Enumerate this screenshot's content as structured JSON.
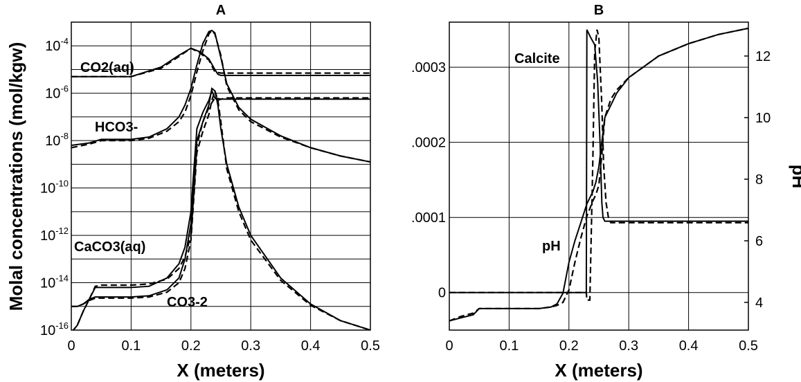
{
  "chart_data": [
    {
      "type": "line",
      "title": "A",
      "xlabel": "X (meters)",
      "ylabel": "Molal concentrations (mol/kgw)",
      "yscale": "log",
      "xlim": [
        0,
        0.5
      ],
      "ylim_log10": [
        -16,
        -3
      ],
      "x_ticks": [
        "0",
        "0.1",
        "0.2",
        "0.3",
        "0.4",
        "0.5"
      ],
      "y_ticks": [
        {
          "base": "10",
          "exp": "-16"
        },
        {
          "base": "10",
          "exp": "-14"
        },
        {
          "base": "10",
          "exp": "-12"
        },
        {
          "base": "10",
          "exp": "-10"
        },
        {
          "base": "10",
          "exp": "-8"
        },
        {
          "base": "10",
          "exp": "-6"
        },
        {
          "base": "10",
          "exp": "-4"
        }
      ],
      "grid": true,
      "annotations": [
        "CO2(aq)",
        "HCO3-",
        "CaCO3(aq)",
        "CO3-2"
      ],
      "series": [
        {
          "name": "CO2(aq)",
          "style": "solid",
          "x": [
            0,
            0.05,
            0.1,
            0.15,
            0.18,
            0.2,
            0.215,
            0.23,
            0.24,
            0.245,
            0.25,
            0.253,
            0.5
          ],
          "log10y": [
            -5.3,
            -5.3,
            -5.3,
            -4.9,
            -4.4,
            -4.1,
            -4.25,
            -4.55,
            -5.0,
            -5.2,
            -5.25,
            -5.25,
            -5.25
          ]
        },
        {
          "name": "CO2(aq)",
          "style": "dashed",
          "x": [
            0,
            0.05,
            0.1,
            0.15,
            0.18,
            0.2,
            0.215,
            0.23,
            0.24,
            0.25,
            0.255,
            0.5
          ],
          "log10y": [
            -5.3,
            -5.3,
            -5.3,
            -4.95,
            -4.45,
            -4.1,
            -4.3,
            -4.6,
            -5.1,
            -5.15,
            -5.15,
            -5.15
          ]
        },
        {
          "name": "HCO3-",
          "style": "solid",
          "x": [
            0,
            0.03,
            0.05,
            0.1,
            0.13,
            0.16,
            0.18,
            0.19,
            0.2,
            0.21,
            0.22,
            0.23,
            0.235,
            0.24,
            0.25,
            0.26,
            0.28,
            0.3,
            0.35,
            0.4,
            0.45,
            0.5
          ],
          "log10y": [
            -8.2,
            -8.1,
            -7.95,
            -7.95,
            -7.85,
            -7.5,
            -7.0,
            -6.5,
            -5.8,
            -4.8,
            -3.9,
            -3.4,
            -3.35,
            -3.45,
            -4.5,
            -5.6,
            -6.6,
            -7.1,
            -7.8,
            -8.3,
            -8.65,
            -8.9
          ]
        },
        {
          "name": "HCO3-",
          "style": "dashed",
          "x": [
            0,
            0.03,
            0.05,
            0.1,
            0.13,
            0.16,
            0.18,
            0.19,
            0.2,
            0.21,
            0.22,
            0.23,
            0.235,
            0.24,
            0.25,
            0.26,
            0.28,
            0.3,
            0.35,
            0.4,
            0.45,
            0.5
          ],
          "log10y": [
            -8.3,
            -8.15,
            -8.0,
            -8.0,
            -7.9,
            -7.6,
            -7.2,
            -6.8,
            -6.1,
            -5.1,
            -4.2,
            -3.5,
            -3.35,
            -3.5,
            -4.4,
            -5.7,
            -6.7,
            -7.2,
            -7.85,
            -8.3,
            -8.65,
            -8.9
          ]
        },
        {
          "name": "CaCO3(aq)",
          "style": "solid",
          "x": [
            0,
            0.01,
            0.02,
            0.03,
            0.04,
            0.05,
            0.1,
            0.13,
            0.16,
            0.18,
            0.19,
            0.2,
            0.205,
            0.21,
            0.22,
            0.23,
            0.235,
            0.24,
            0.245,
            0.25,
            0.5
          ],
          "log10y": [
            -16.1,
            -15.8,
            -15.2,
            -14.7,
            -14.2,
            -14.2,
            -14.2,
            -14.15,
            -13.8,
            -13.2,
            -12.5,
            -11.0,
            -9.2,
            -7.5,
            -6.8,
            -6.3,
            -5.9,
            -6.2,
            -6.3,
            -6.25,
            -6.25
          ]
        },
        {
          "name": "CaCO3(aq)",
          "style": "dashed",
          "x": [
            0,
            0.01,
            0.02,
            0.03,
            0.04,
            0.05,
            0.1,
            0.13,
            0.16,
            0.18,
            0.19,
            0.2,
            0.21,
            0.22,
            0.23,
            0.24,
            0.25,
            0.26,
            0.5
          ],
          "log10y": [
            -16.1,
            -15.8,
            -15.2,
            -14.7,
            -14.15,
            -14.1,
            -14.1,
            -14.05,
            -13.85,
            -13.4,
            -12.9,
            -12.0,
            -8.2,
            -7.2,
            -6.6,
            -6.2,
            -6.25,
            -6.2,
            -6.2
          ]
        },
        {
          "name": "CO3-2",
          "style": "solid",
          "x": [
            0,
            0.01,
            0.02,
            0.03,
            0.04,
            0.05,
            0.1,
            0.13,
            0.16,
            0.18,
            0.19,
            0.2,
            0.205,
            0.21,
            0.22,
            0.23,
            0.235,
            0.24,
            0.245,
            0.25,
            0.26,
            0.28,
            0.3,
            0.35,
            0.4,
            0.45,
            0.5
          ],
          "log10y": [
            -15.0,
            -15.0,
            -14.9,
            -14.7,
            -14.6,
            -14.6,
            -14.6,
            -14.55,
            -14.3,
            -13.8,
            -13.0,
            -11.5,
            -9.5,
            -8.0,
            -7.2,
            -6.5,
            -5.8,
            -5.9,
            -6.5,
            -7.5,
            -9.0,
            -10.8,
            -12.0,
            -13.8,
            -14.9,
            -15.6,
            -16.0
          ]
        },
        {
          "name": "CO3-2",
          "style": "dashed",
          "x": [
            0,
            0.01,
            0.02,
            0.03,
            0.04,
            0.05,
            0.1,
            0.13,
            0.16,
            0.18,
            0.19,
            0.2,
            0.21,
            0.22,
            0.23,
            0.235,
            0.24,
            0.245,
            0.25,
            0.26,
            0.28,
            0.3,
            0.35,
            0.4,
            0.45,
            0.5
          ],
          "log10y": [
            -15.0,
            -15.0,
            -14.9,
            -14.75,
            -14.65,
            -14.65,
            -14.65,
            -14.6,
            -14.4,
            -14.0,
            -13.4,
            -12.2,
            -8.5,
            -7.6,
            -6.9,
            -6.3,
            -5.9,
            -6.3,
            -7.2,
            -9.2,
            -11.0,
            -12.2,
            -13.9,
            -14.95,
            -15.6,
            -16.0
          ]
        }
      ]
    },
    {
      "type": "line",
      "title": "B",
      "xlabel": "X (meters)",
      "ylabel_right": "pH",
      "xlim": [
        0,
        0.5
      ],
      "ylim_left": [
        -5e-05,
        0.00036
      ],
      "ylim_right": [
        3.1,
        13.1
      ],
      "x_ticks": [
        "0",
        "0.1",
        "0.2",
        "0.3",
        "0.4",
        "0.5"
      ],
      "y_ticks_left": [
        "0",
        ".0001",
        ".0002",
        ".0003"
      ],
      "y_ticks_right": [
        "4",
        "6",
        "8",
        "10",
        "12"
      ],
      "grid": true,
      "annotations": [
        "Calcite",
        "pH"
      ],
      "series": [
        {
          "name": "Calcite",
          "style": "solid",
          "axis": "left",
          "x": [
            0,
            0.229,
            0.23,
            0.236,
            0.243,
            0.248,
            0.252,
            0.255,
            0.257,
            0.26,
            0.5
          ],
          "y": [
            0,
            0,
            0.00035,
            0.00034,
            0.00033,
            0.00028,
            0.0002,
            0.00012,
            0.0001,
            9.5e-05,
            9.5e-05
          ]
        },
        {
          "name": "Calcite",
          "style": "dashed",
          "axis": "left",
          "x": [
            0,
            0.229,
            0.23,
            0.235,
            0.24,
            0.243,
            0.247,
            0.25,
            0.255,
            0.258,
            0.262,
            0.266,
            0.27,
            0.5
          ],
          "y": [
            0,
            0,
            -1e-05,
            -1e-05,
            0.00018,
            0.00032,
            0.00035,
            0.00034,
            0.00025,
            0.00017,
            0.00012,
            0.0001,
            9.3e-05,
            9.3e-05
          ]
        },
        {
          "name": "pH",
          "style": "solid",
          "axis": "right",
          "x": [
            0,
            0.02,
            0.04,
            0.05,
            0.1,
            0.15,
            0.17,
            0.18,
            0.19,
            0.2,
            0.21,
            0.22,
            0.23,
            0.24,
            0.245,
            0.25,
            0.26,
            0.28,
            0.3,
            0.35,
            0.4,
            0.45,
            0.5
          ],
          "y": [
            3.4,
            3.5,
            3.6,
            3.8,
            3.8,
            3.8,
            3.85,
            3.95,
            4.3,
            5.3,
            6.0,
            6.6,
            7.2,
            7.6,
            7.9,
            8.4,
            10.0,
            10.8,
            11.3,
            12.0,
            12.4,
            12.7,
            12.9
          ]
        },
        {
          "name": "pH",
          "style": "dashed",
          "axis": "right",
          "x": [
            0,
            0.02,
            0.04,
            0.05,
            0.1,
            0.15,
            0.17,
            0.18,
            0.19,
            0.2,
            0.21,
            0.22,
            0.23,
            0.24,
            0.245,
            0.25,
            0.255,
            0.26,
            0.27,
            0.28,
            0.3,
            0.35,
            0.4,
            0.45,
            0.5
          ],
          "y": [
            3.4,
            3.55,
            3.65,
            3.8,
            3.8,
            3.8,
            3.85,
            3.9,
            4.0,
            4.4,
            5.3,
            6.1,
            6.8,
            7.3,
            7.5,
            7.8,
            8.8,
            10.0,
            10.6,
            10.9,
            11.3,
            12.0,
            12.4,
            12.7,
            12.9
          ]
        }
      ]
    }
  ]
}
